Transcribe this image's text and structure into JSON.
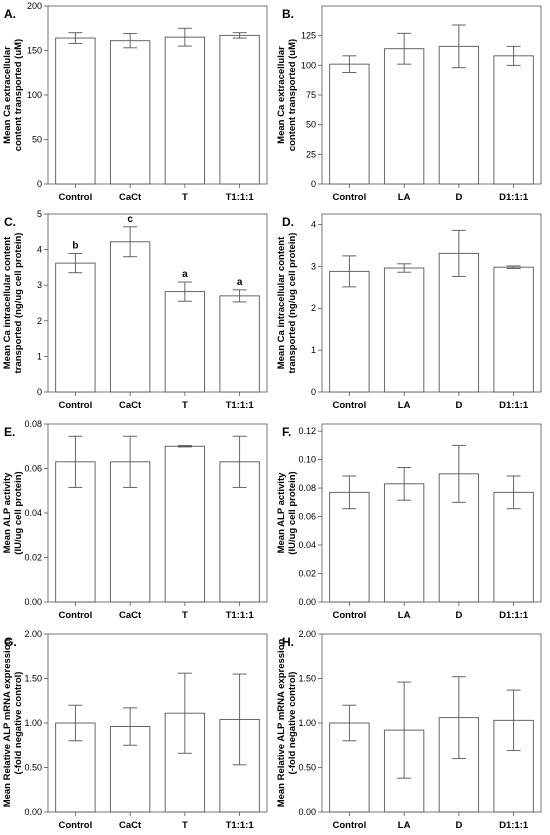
{
  "chart_data": [
    {
      "panel": "A.",
      "type": "bar",
      "ylabel": [
        "Mean Ca extracellular",
        "content transported (uM)"
      ],
      "categories": [
        "Control",
        "CaCt",
        "T",
        "T1:1:1"
      ],
      "values": [
        164,
        161,
        165,
        167
      ],
      "errors": [
        6,
        8,
        10,
        3
      ],
      "ylim": [
        0,
        200
      ],
      "yticks": [
        "0",
        "50",
        "100",
        "150",
        "200"
      ],
      "ytick_values": [
        0,
        50,
        100,
        150,
        200
      ],
      "significance": []
    },
    {
      "panel": "B.",
      "type": "bar",
      "ylabel": [
        "Mean Ca extracellular",
        "content transported (uM)"
      ],
      "categories": [
        "Control",
        "LA",
        "D",
        "D1:1:1"
      ],
      "values": [
        101,
        114,
        116,
        108
      ],
      "errors": [
        7,
        13,
        18,
        8
      ],
      "ylim": [
        0,
        150
      ],
      "yticks": [
        "0",
        "25",
        "50",
        "75",
        "100",
        "125"
      ],
      "ytick_values": [
        0,
        25,
        50,
        75,
        100,
        125
      ],
      "significance": []
    },
    {
      "panel": "C.",
      "type": "bar",
      "ylabel": [
        "Mean Ca intracellular content",
        "transported (ng/ug cell protein)"
      ],
      "categories": [
        "Control",
        "CaCt",
        "T",
        "T1:1:1"
      ],
      "values": [
        3.62,
        4.22,
        2.82,
        2.7
      ],
      "errors": [
        0.27,
        0.42,
        0.27,
        0.17
      ],
      "ylim": [
        0,
        5
      ],
      "yticks": [
        "0",
        "1",
        "2",
        "3",
        "4",
        "5"
      ],
      "ytick_values": [
        0,
        1,
        2,
        3,
        4,
        5
      ],
      "significance": [
        "b",
        "c",
        "a",
        "a"
      ]
    },
    {
      "panel": "D.",
      "type": "bar",
      "ylabel": [
        "Mean Ca intracellular content",
        "transported (ng/ug cell protein)"
      ],
      "categories": [
        "Control",
        "LA",
        "D",
        "D1:1:1"
      ],
      "values": [
        2.88,
        2.96,
        3.31,
        2.98
      ],
      "errors": [
        0.37,
        0.1,
        0.55,
        0.03
      ],
      "ylim": [
        0,
        4.25
      ],
      "yticks": [
        "0",
        "1",
        "2",
        "3",
        "4"
      ],
      "ytick_values": [
        0,
        1,
        2,
        3,
        4
      ],
      "significance": []
    },
    {
      "panel": "E.",
      "type": "bar",
      "ylabel": [
        "Mean ALP activity",
        "(IU/ug cell protein)"
      ],
      "categories": [
        "Control",
        "CaCt",
        "T",
        "T1:1:1"
      ],
      "values": [
        0.063,
        0.063,
        0.07,
        0.063
      ],
      "errors": [
        0.0115,
        0.0115,
        0.0003,
        0.0115
      ],
      "ylim": [
        0,
        0.08
      ],
      "yticks": [
        "0.00",
        "0.02",
        "0.04",
        "0.06",
        "0.08"
      ],
      "ytick_values": [
        0,
        0.02,
        0.04,
        0.06,
        0.08
      ],
      "significance": []
    },
    {
      "panel": "F.",
      "type": "bar",
      "ylabel": [
        "Mean ALP activity",
        "(IU/ug cell protein)"
      ],
      "categories": [
        "Control",
        "LA",
        "D",
        "D1:1:1"
      ],
      "values": [
        0.077,
        0.083,
        0.09,
        0.077
      ],
      "errors": [
        0.0115,
        0.0115,
        0.02,
        0.0115
      ],
      "ylim": [
        0,
        0.125
      ],
      "yticks": [
        "0.00",
        "0.02",
        "0.04",
        "0.06",
        "0.08",
        "0.10",
        "0.12"
      ],
      "ytick_values": [
        0,
        0.02,
        0.04,
        0.06,
        0.08,
        0.1,
        0.12
      ],
      "significance": []
    },
    {
      "panel": "G.",
      "type": "bar",
      "ylabel": [
        "Mean Relative ALP mRNA expression",
        "(-fold negative control)"
      ],
      "categories": [
        "Control",
        "CaCt",
        "T",
        "T1:1:1"
      ],
      "values": [
        1.0,
        0.96,
        1.11,
        1.04
      ],
      "errors": [
        0.2,
        0.21,
        0.45,
        0.51
      ],
      "ylim": [
        0,
        2.0
      ],
      "yticks": [
        "0.00",
        "0.50",
        "1.00",
        "1.50",
        "2.00"
      ],
      "ytick_values": [
        0,
        0.5,
        1.0,
        1.5,
        2.0
      ],
      "significance": []
    },
    {
      "panel": "H.",
      "type": "bar",
      "ylabel": [
        "Mean Relative ALP mRNA expression",
        "(-fold negative control)"
      ],
      "categories": [
        "Control",
        "LA",
        "D",
        "D1:1:1"
      ],
      "values": [
        1.0,
        0.92,
        1.06,
        1.03
      ],
      "errors": [
        0.2,
        0.54,
        0.46,
        0.34
      ],
      "ylim": [
        0,
        2.0
      ],
      "yticks": [
        "0.00",
        "0.50",
        "1.00",
        "1.50",
        "2.00"
      ],
      "ytick_values": [
        0,
        0.5,
        1.0,
        1.5,
        2.0
      ],
      "significance": []
    }
  ]
}
